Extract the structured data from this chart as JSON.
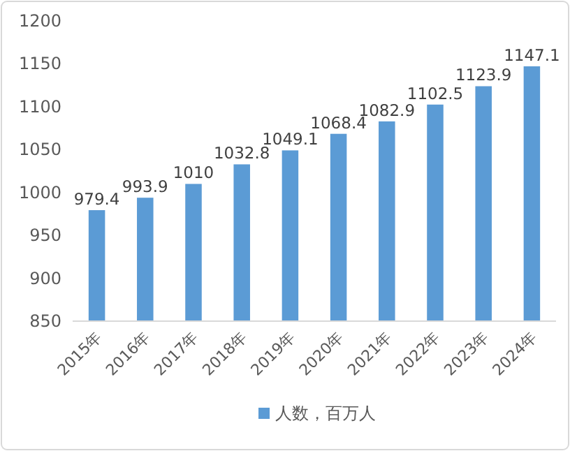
{
  "chart_data": {
    "type": "bar",
    "categories": [
      "2015年",
      "2016年",
      "2017年",
      "2018年",
      "2019年",
      "2020年",
      "2021年",
      "2022年",
      "2023年",
      "2024年"
    ],
    "series": [
      {
        "name": "人数，百万人",
        "color": "#5b9bd5",
        "values": [
          979.4,
          993.9,
          1010,
          1032.8,
          1049.1,
          1068.4,
          1082.9,
          1102.5,
          1123.9,
          1147.1
        ]
      }
    ],
    "ylim": [
      850,
      1200
    ],
    "yticks": [
      850,
      900,
      950,
      1000,
      1050,
      1100,
      1150,
      1200
    ],
    "data_labels": true,
    "legend": "bottom"
  }
}
